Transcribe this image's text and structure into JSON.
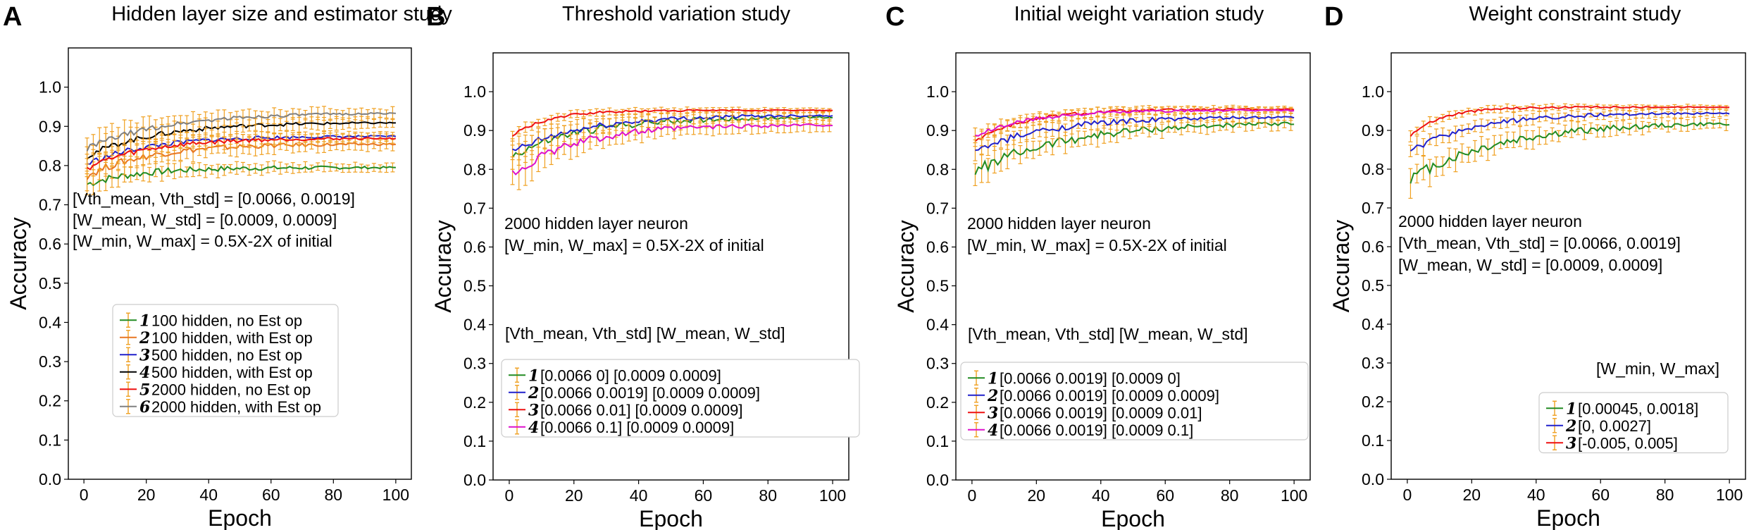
{
  "chart_data": [
    {
      "type": "line",
      "letter": "A",
      "title": "Hidden layer size and estimator study",
      "xlabel": "Epoch",
      "ylabel": "Accuracy",
      "xlim": [
        -5,
        105
      ],
      "ylim": [
        0.0,
        1.1
      ],
      "xticks": [
        "0",
        "20",
        "40",
        "60",
        "80",
        "100"
      ],
      "yticks": [
        "0.0",
        "0.1",
        "0.2",
        "0.3",
        "0.4",
        "0.5",
        "0.6",
        "0.7",
        "0.8",
        "0.9",
        "1.0"
      ],
      "annotations": [
        "[Vth_mean, Vth_std] = [0.0066, 0.0019]",
        "[W_mean, W_std] = [0.0009, 0.0009]",
        "[W_min, W_max] = 0.5X-2X of initial"
      ],
      "legend_header": "",
      "legend_location": "lower right",
      "series": [
        {
          "num": "1",
          "name": "100 hidden, no Est op",
          "color": "#228B22",
          "start": 0.75,
          "end": 0.795,
          "rate": 0.06,
          "noise": 0.01,
          "err": 0.03
        },
        {
          "num": "2",
          "name": "100 hidden, with Est op",
          "color": "#e87722",
          "start": 0.77,
          "end": 0.855,
          "rate": 0.05,
          "noise": 0.01,
          "err": 0.04
        },
        {
          "num": "3",
          "name": "500 hidden, no Est op",
          "color": "#2020cc",
          "start": 0.8,
          "end": 0.875,
          "rate": 0.05,
          "noise": 0.008,
          "err": 0.03
        },
        {
          "num": "4",
          "name": "500 hidden, with Est op",
          "color": "#000000",
          "start": 0.82,
          "end": 0.91,
          "rate": 0.045,
          "noise": 0.008,
          "err": 0.04
        },
        {
          "num": "5",
          "name": "2000 hidden, no Est op",
          "color": "#ee1111",
          "start": 0.79,
          "end": 0.87,
          "rate": 0.05,
          "noise": 0.008,
          "err": 0.03
        },
        {
          "num": "6",
          "name": "2000 hidden, with Est op",
          "color": "#808080",
          "start": 0.84,
          "end": 0.935,
          "rate": 0.04,
          "noise": 0.008,
          "err": 0.04
        }
      ]
    },
    {
      "type": "line",
      "letter": "B",
      "title": "Threshold variation study",
      "xlabel": "Epoch",
      "ylabel": "Accuracy",
      "xlim": [
        -5,
        105
      ],
      "ylim": [
        0.0,
        1.1
      ],
      "xticks": [
        "0",
        "20",
        "40",
        "60",
        "80",
        "100"
      ],
      "yticks": [
        "0.0",
        "0.1",
        "0.2",
        "0.3",
        "0.4",
        "0.5",
        "0.6",
        "0.7",
        "0.8",
        "0.9",
        "1.0"
      ],
      "annotations": [
        "2000 hidden layer neuron",
        "[W_min, W_max] = 0.5X-2X of initial"
      ],
      "legend_header": "[Vth_mean, Vth_std]  [W_mean, W_std]",
      "legend_location": "lower right",
      "series": [
        {
          "num": "1",
          "name": "[0.0066 0] [0.0009 0.0009]",
          "color": "#228B22",
          "start": 0.83,
          "end": 0.935,
          "rate": 0.045,
          "noise": 0.012,
          "err": 0.04
        },
        {
          "num": "2",
          "name": "[0.0066 0.0019] [0.0009 0.0009]",
          "color": "#2020cc",
          "start": 0.84,
          "end": 0.94,
          "rate": 0.045,
          "noise": 0.01,
          "err": 0.035
        },
        {
          "num": "3",
          "name": "[0.0066 0.01] [0.0009 0.0009]",
          "color": "#ee1111",
          "start": 0.88,
          "end": 0.952,
          "rate": 0.09,
          "noise": 0.004,
          "err": 0.015
        },
        {
          "num": "4",
          "name": "[0.0066 0.1] [0.0009 0.0009]",
          "color": "#dd11cc",
          "start": 0.78,
          "end": 0.915,
          "rate": 0.05,
          "noise": 0.012,
          "err": 0.05
        }
      ]
    },
    {
      "type": "line",
      "letter": "C",
      "title": "Initial weight variation study",
      "xlabel": "Epoch",
      "ylabel": "Accuracy",
      "xlim": [
        -5,
        105
      ],
      "ylim": [
        0.0,
        1.1
      ],
      "xticks": [
        "0",
        "20",
        "40",
        "60",
        "80",
        "100"
      ],
      "yticks": [
        "0.0",
        "0.1",
        "0.2",
        "0.3",
        "0.4",
        "0.5",
        "0.6",
        "0.7",
        "0.8",
        "0.9",
        "1.0"
      ],
      "annotations": [
        "2000 hidden layer neuron",
        "[W_min, W_max] = 0.5X-2X of initial"
      ],
      "legend_header": "[Vth_mean, Vth_std]  [W_mean, W_std]",
      "legend_location": "lower right",
      "series": [
        {
          "num": "1",
          "name": "[0.0066 0.0019] [0.0009 0]",
          "color": "#228B22",
          "start": 0.79,
          "end": 0.922,
          "rate": 0.035,
          "noise": 0.015,
          "err": 0.04
        },
        {
          "num": "2",
          "name": "[0.0066 0.0019] [0.0009 0.0009]",
          "color": "#2020cc",
          "start": 0.84,
          "end": 0.935,
          "rate": 0.045,
          "noise": 0.01,
          "err": 0.03
        },
        {
          "num": "3",
          "name": "[0.0066 0.0019] [0.0009 0.01]",
          "color": "#ee1111",
          "start": 0.87,
          "end": 0.955,
          "rate": 0.06,
          "noise": 0.006,
          "err": 0.02
        },
        {
          "num": "4",
          "name": "[0.0066 0.0019] [0.0009 0.1]",
          "color": "#dd11cc",
          "start": 0.88,
          "end": 0.952,
          "rate": 0.06,
          "noise": 0.006,
          "err": 0.02
        }
      ]
    },
    {
      "type": "line",
      "letter": "D",
      "title": "Weight constraint study",
      "xlabel": "Epoch",
      "ylabel": "Accuracy",
      "xlim": [
        -5,
        105
      ],
      "ylim": [
        0.0,
        1.1
      ],
      "xticks": [
        "0",
        "20",
        "40",
        "60",
        "80",
        "100"
      ],
      "yticks": [
        "0.0",
        "0.1",
        "0.2",
        "0.3",
        "0.4",
        "0.5",
        "0.6",
        "0.7",
        "0.8",
        "0.9",
        "1.0"
      ],
      "annotations": [
        "2000 hidden layer neuron",
        "[Vth_mean, Vth_std] = [0.0066, 0.0019]",
        "[W_mean, W_std] = [0.0009, 0.0009]"
      ],
      "legend_header": "[W_min, W_max]",
      "legend_location": "lower right",
      "series": [
        {
          "num": "1",
          "name": "[0.00045, 0.0018]",
          "color": "#228B22",
          "start": 0.77,
          "end": 0.922,
          "rate": 0.035,
          "noise": 0.015,
          "err": 0.04
        },
        {
          "num": "2",
          "name": "[0, 0.0027]",
          "color": "#2020cc",
          "start": 0.84,
          "end": 0.945,
          "rate": 0.05,
          "noise": 0.008,
          "err": 0.025
        },
        {
          "num": "3",
          "name": "[-0.005, 0.005]",
          "color": "#ee1111",
          "start": 0.88,
          "end": 0.96,
          "rate": 0.1,
          "noise": 0.004,
          "err": 0.015
        }
      ]
    }
  ]
}
